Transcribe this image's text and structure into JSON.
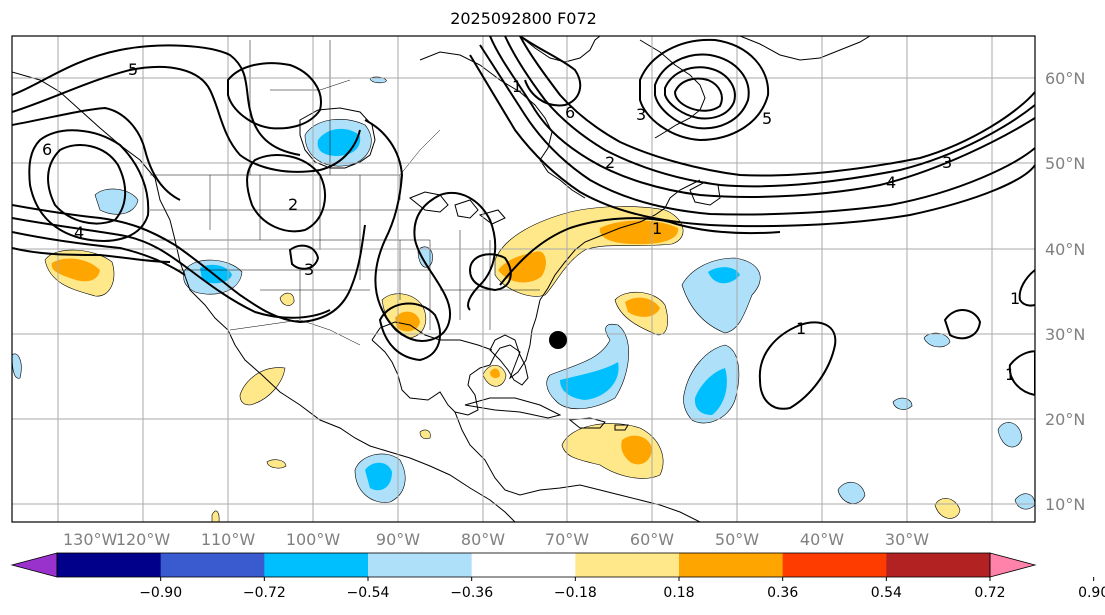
{
  "title": "2025092800 F072",
  "lon_labels": [
    "130°W",
    "120°W",
    "110°W",
    "100°W",
    "90°W",
    "80°W",
    "70°W",
    "60°W",
    "50°W",
    "40°W",
    "30°W"
  ],
  "lat_labels": [
    "60°N",
    "50°N",
    "40°N",
    "30°N",
    "20°N",
    "10°N"
  ],
  "colorbar": {
    "colors": [
      "#9932cc",
      "#00008b",
      "#3a5bd0",
      "#00bfff",
      "#aee0fa",
      "#ffffff",
      "#ffe88a",
      "#ffa500",
      "#ff3c00",
      "#b22222",
      "#ff82aa"
    ],
    "ticks": [
      "−0.90",
      "−0.72",
      "−0.54",
      "−0.36",
      "−0.18",
      "0.18",
      "0.36",
      "0.54",
      "0.72",
      "0.90"
    ]
  },
  "contour_labels": [
    "5",
    "4",
    "6",
    "2",
    "3",
    "1",
    "6",
    "5",
    "4",
    "3",
    "1",
    "1",
    "1",
    "1",
    "2",
    "3"
  ],
  "storm_marker": {
    "lon": -75.5,
    "lat": 29.5
  }
}
